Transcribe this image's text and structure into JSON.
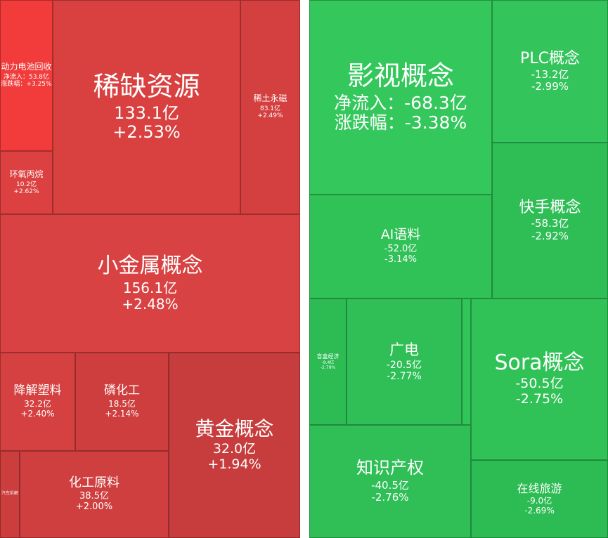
{
  "tiles": [
    {
      "name": "动力电池回收",
      "flow": "净流入：53.8亿",
      "change": "涨跌幅：+3.25%"
    },
    {
      "name": "环氧丙烷",
      "flow": "10.2亿",
      "change": "+2.62%"
    },
    {
      "name": "稀缺资源",
      "flow": "133.1亿",
      "change": "+2.53%"
    },
    {
      "name": "稀土永磁",
      "flow": "83.1亿",
      "change": "+2.49%"
    },
    {
      "name": "小金属概念",
      "flow": "156.1亿",
      "change": "+2.48%"
    },
    {
      "name": "降解塑料",
      "flow": "32.2亿",
      "change": "+2.40%"
    },
    {
      "name": "磷化工",
      "flow": "18.5亿",
      "change": "+2.14%"
    },
    {
      "name": "黄金概念",
      "flow": "32.0亿",
      "change": "+1.94%"
    },
    {
      "name": "汽车拆解"
    },
    {
      "name": "化工原料",
      "flow": "38.5亿",
      "change": "+2.00%"
    },
    {
      "name": "影视概念",
      "flow": "净流入：-68.3亿",
      "change": "涨跌幅：-3.38%"
    },
    {
      "name": "PLC概念",
      "flow": "-13.2亿",
      "change": "-2.99%"
    },
    {
      "name": "快手概念",
      "flow": "-58.3亿",
      "change": "-2.92%"
    },
    {
      "name": "AI语料",
      "flow": "-52.0亿",
      "change": "-3.14%"
    },
    {
      "name": "盲盒经济",
      "flow": "-9.4亿",
      "change": "-2.79%"
    },
    {
      "name": "广电",
      "flow": "-20.5亿",
      "change": "-2.77%"
    },
    {
      "name": "Sora概念",
      "flow": "-50.5亿",
      "change": "-2.75%"
    },
    {
      "name": "知识产权",
      "flow": "-40.5亿",
      "change": "-2.76%"
    },
    {
      "name": "在线旅游",
      "flow": "-9.0亿",
      "change": "-2.69%"
    }
  ]
}
